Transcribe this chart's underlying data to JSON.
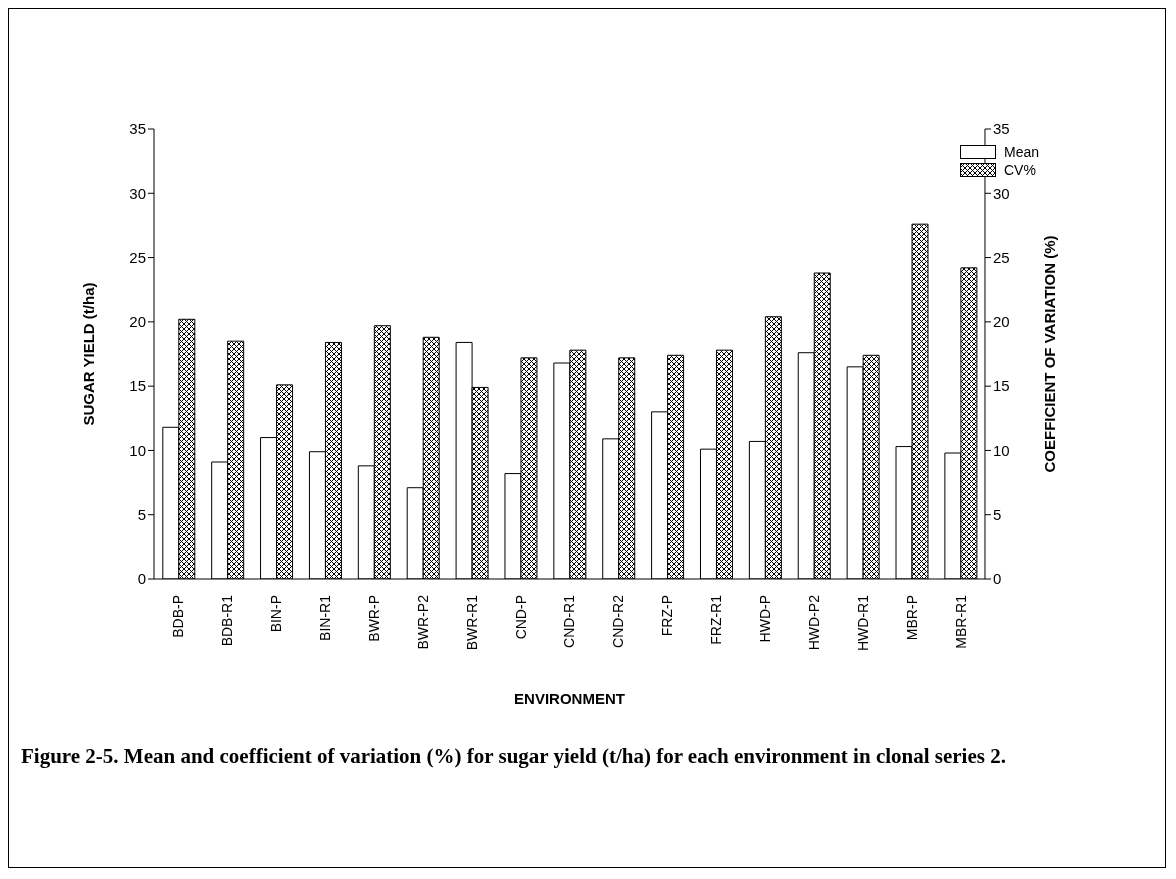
{
  "chart_data": {
    "type": "bar",
    "xlabel": "ENVIRONMENT",
    "ylabel": "SUGAR YIELD (t/ha)",
    "y2label": "COEFFICIENT OF VARIATION (%)",
    "categories": [
      "BDB-P",
      "BDB-R1",
      "BIN-P",
      "BIN-R1",
      "BWR-P",
      "BWR-P2",
      "BWR-R1",
      "CND-P",
      "CND-R1",
      "CND-R2",
      "FRZ-P",
      "FRZ-R1",
      "HWD-P",
      "HWD-P2",
      "HWD-R1",
      "MBR-P",
      "MBR-R1"
    ],
    "series": [
      {
        "name": "Mean",
        "color": "#ffffff",
        "values": [
          11.8,
          9.1,
          11.0,
          9.9,
          8.8,
          7.1,
          18.4,
          8.2,
          16.8,
          10.9,
          13.0,
          10.1,
          10.7,
          17.6,
          16.5,
          10.3,
          9.8
        ]
      },
      {
        "name": "CV%",
        "color": "#000000",
        "axis": "y2",
        "values": [
          20.2,
          18.5,
          15.1,
          18.4,
          19.7,
          18.8,
          14.9,
          17.2,
          17.8,
          17.2,
          17.4,
          17.8,
          20.4,
          23.8,
          17.4,
          27.6,
          24.2
        ]
      }
    ],
    "ylim": [
      0,
      35
    ],
    "yticks": [
      0,
      5,
      10,
      15,
      20,
      25,
      30,
      35
    ],
    "y2lim": [
      0,
      35
    ],
    "y2ticks": [
      0,
      5,
      10,
      15,
      20,
      25,
      30,
      35
    ],
    "legend": "top right",
    "grid": false,
    "annotations": [
      "Figure 2-5.  Mean and coefficient of variation (%) for sugar yield (t/ha) for each environment in clonal series 2."
    ]
  }
}
